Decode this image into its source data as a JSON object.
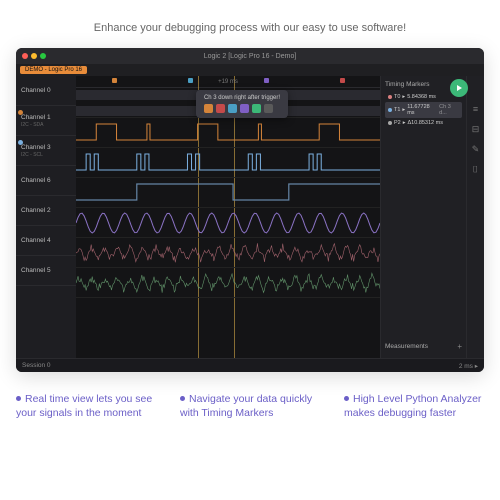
{
  "tagline": "Enhance your debugging process with our easy to use software!",
  "window": {
    "title": "Logic 2 [Logic Pro 16 - Demo]",
    "tab": "DEMO - Logic Pro 16"
  },
  "time_axis_label": "+19 ms",
  "channels": [
    {
      "name": "Channel 0",
      "sub": "",
      "color": "#a7a7a7"
    },
    {
      "name": "Channel 1",
      "sub": "I2C - SDA",
      "color": "#d4843a"
    },
    {
      "name": "Channel 3",
      "sub": "I2C - SCL",
      "color": "#7bb0e0"
    },
    {
      "name": "Channel 6",
      "sub": "",
      "color": "#9a7fd4"
    },
    {
      "name": "Channel 2",
      "sub": "",
      "color": "#c48fd8"
    },
    {
      "name": "Channel 4",
      "sub": "",
      "color": "#d87f7f"
    },
    {
      "name": "Channel 5",
      "sub": "",
      "color": "#7fc98f"
    }
  ],
  "tooltip": {
    "text": "Ch 3 down right after trigger!",
    "chip_colors": [
      "#d4843a",
      "#c44a4a",
      "#4a9fc4",
      "#7f5fc4",
      "#3cb878",
      "#5a5a5a"
    ]
  },
  "ruler_colors": [
    "#d4843a",
    "#4a9fc4",
    "#7f5fc4",
    "#c44a4a",
    "#5a5a5a"
  ],
  "timing_markers": {
    "title": "Timing Markers",
    "rows": [
      {
        "label": "T0",
        "value": "5.84368 ms",
        "color": "#d87f7f",
        "selected": false
      },
      {
        "label": "T1",
        "value": "11.67728 ms",
        "extra": "Ch 3 d...",
        "color": "#7bb0e0",
        "selected": true
      },
      {
        "label": "P2",
        "value": "Δ10.85312 ms",
        "color": "#a7a7a7",
        "selected": false
      }
    ]
  },
  "measurements_title": "Measurements",
  "statusbar": {
    "left": "Session 0",
    "right": "2 ms ▸"
  },
  "waveforms": {
    "digital_pulse_color": "#6585a5",
    "sine_color": "#8a72c4",
    "noise1_color": "#b8707a",
    "noise2_color": "#6ea878"
  },
  "features": [
    "Real time view lets you see your signals in the moment",
    "Navigate your data quickly with Timing Markers",
    "High Level Python Analyzer makes debugging faster"
  ]
}
